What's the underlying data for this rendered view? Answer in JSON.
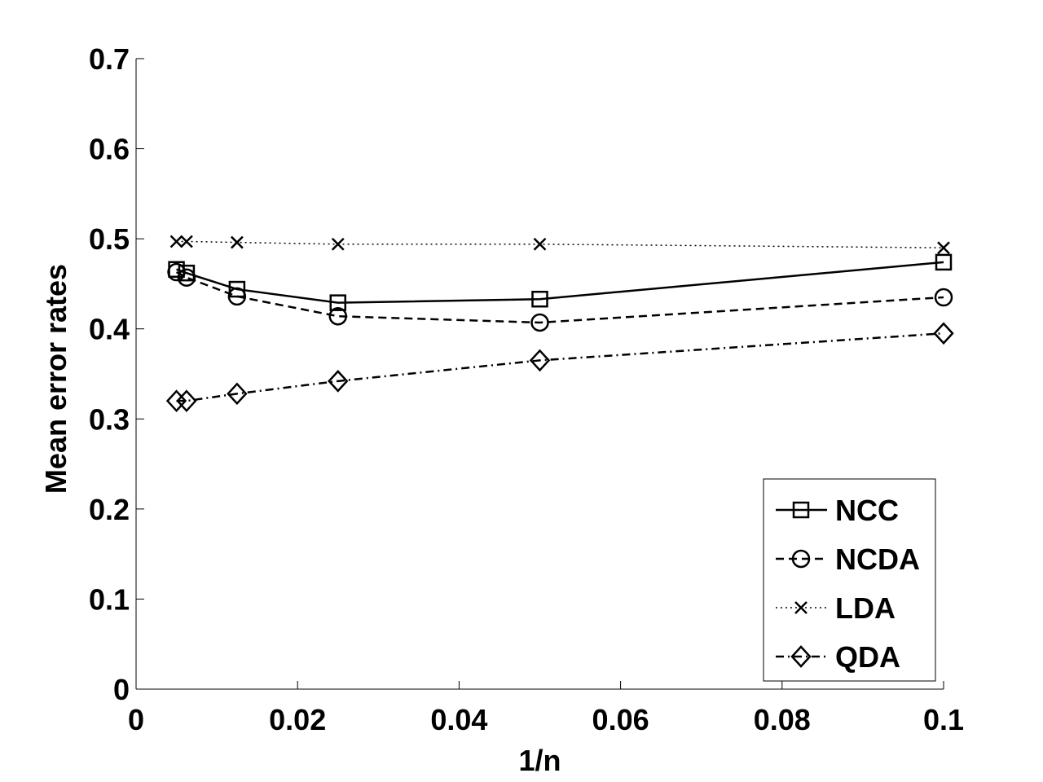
{
  "chart_data": {
    "type": "line",
    "title": "",
    "xlabel": "1/n",
    "ylabel": "Mean error rates",
    "xlim": [
      0,
      0.1
    ],
    "ylim": [
      0,
      0.7
    ],
    "xticks": [
      0,
      0.02,
      0.04,
      0.06,
      0.08,
      0.1
    ],
    "xtick_labels": [
      "0",
      "0.02",
      "0.04",
      "0.06",
      "0.08",
      "0.1"
    ],
    "yticks": [
      0,
      0.1,
      0.2,
      0.3,
      0.4,
      0.5,
      0.6,
      0.7
    ],
    "ytick_labels": [
      "0",
      "0.1",
      "0.2",
      "0.3",
      "0.4",
      "0.5",
      "0.6",
      "0.7"
    ],
    "x": [
      0.005,
      0.00625,
      0.0125,
      0.025,
      0.05,
      0.1
    ],
    "series": [
      {
        "name": "NCC",
        "marker": "square",
        "linestyle": "solid",
        "values": [
          0.466,
          0.462,
          0.444,
          0.429,
          0.433,
          0.474
        ]
      },
      {
        "name": "NCDA",
        "marker": "circle",
        "linestyle": "dashed",
        "values": [
          0.463,
          0.457,
          0.436,
          0.414,
          0.407,
          0.435
        ]
      },
      {
        "name": "LDA",
        "marker": "x",
        "linestyle": "dotted",
        "values": [
          0.497,
          0.497,
          0.496,
          0.494,
          0.494,
          0.49
        ]
      },
      {
        "name": "QDA",
        "marker": "diamond",
        "linestyle": "dashdot",
        "values": [
          0.32,
          0.32,
          0.328,
          0.342,
          0.365,
          0.395
        ]
      }
    ],
    "legend_position": "bottom-right",
    "grid": false
  }
}
